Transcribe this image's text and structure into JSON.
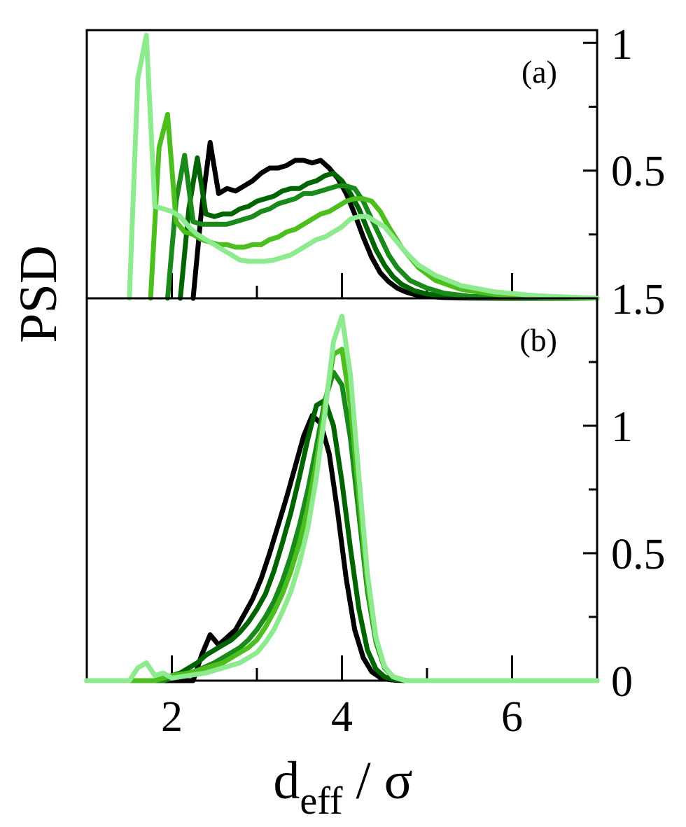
{
  "figure": {
    "ylabel": "PSD",
    "xlabel_main": "d",
    "xlabel_sub": "eff",
    "xlabel_rest": " / σ"
  },
  "chart_data": [
    {
      "type": "line",
      "panel": "(a)",
      "xlim": [
        1,
        7
      ],
      "ylim": [
        0,
        1.05
      ],
      "x_ticks": [
        2,
        4,
        6
      ],
      "y_tick_labels": [
        "1",
        "0.5"
      ],
      "colors": [
        "#000000",
        "#006400",
        "#1a8a1a",
        "#4cbf1f",
        "#8eea8e"
      ],
      "series": [
        {
          "x": [
            2.25,
            2.35,
            2.45,
            2.55,
            2.65,
            2.75,
            2.85,
            2.95,
            3.05,
            3.15,
            3.25,
            3.35,
            3.45,
            3.55,
            3.65,
            3.75,
            3.85,
            3.95,
            4.05,
            4.15,
            4.25,
            4.35,
            4.45,
            4.55,
            4.65,
            4.75,
            4.85,
            5.0,
            5.2,
            5.5,
            6.0,
            7.0
          ],
          "values": [
            0.0,
            0.35,
            0.61,
            0.41,
            0.43,
            0.42,
            0.44,
            0.46,
            0.49,
            0.51,
            0.51,
            0.52,
            0.54,
            0.54,
            0.53,
            0.54,
            0.51,
            0.47,
            0.41,
            0.33,
            0.24,
            0.16,
            0.1,
            0.065,
            0.04,
            0.025,
            0.015,
            0.007,
            0.003,
            0.001,
            0.0,
            0.0
          ]
        },
        {
          "x": [
            2.1,
            2.2,
            2.3,
            2.4,
            2.5,
            2.6,
            2.7,
            2.8,
            2.9,
            3.0,
            3.1,
            3.2,
            3.3,
            3.4,
            3.5,
            3.6,
            3.7,
            3.8,
            3.9,
            4.0,
            4.1,
            4.2,
            4.3,
            4.4,
            4.5,
            4.6,
            4.7,
            4.85,
            5.0,
            5.2,
            5.5,
            6.0,
            7.0
          ],
          "values": [
            0.0,
            0.35,
            0.55,
            0.33,
            0.32,
            0.33,
            0.33,
            0.35,
            0.36,
            0.38,
            0.39,
            0.4,
            0.42,
            0.43,
            0.43,
            0.45,
            0.46,
            0.48,
            0.49,
            0.46,
            0.41,
            0.35,
            0.27,
            0.19,
            0.13,
            0.085,
            0.055,
            0.03,
            0.017,
            0.008,
            0.003,
            0.001,
            0.0
          ]
        },
        {
          "x": [
            1.95,
            2.05,
            2.15,
            2.25,
            2.35,
            2.45,
            2.55,
            2.65,
            2.75,
            2.85,
            2.95,
            3.05,
            3.15,
            3.25,
            3.35,
            3.45,
            3.55,
            3.65,
            3.75,
            3.85,
            3.95,
            4.05,
            4.15,
            4.25,
            4.35,
            4.45,
            4.55,
            4.65,
            4.8,
            5.0,
            5.2,
            5.5,
            6.0,
            7.0
          ],
          "values": [
            0.0,
            0.38,
            0.56,
            0.3,
            0.29,
            0.29,
            0.29,
            0.29,
            0.3,
            0.31,
            0.32,
            0.34,
            0.35,
            0.37,
            0.38,
            0.39,
            0.41,
            0.41,
            0.42,
            0.43,
            0.44,
            0.44,
            0.43,
            0.38,
            0.31,
            0.24,
            0.17,
            0.12,
            0.07,
            0.04,
            0.02,
            0.008,
            0.002,
            0.0
          ]
        },
        {
          "x": [
            1.75,
            1.85,
            1.95,
            2.05,
            2.15,
            2.25,
            2.35,
            2.45,
            2.55,
            2.65,
            2.75,
            2.85,
            2.95,
            3.05,
            3.15,
            3.25,
            3.35,
            3.45,
            3.55,
            3.65,
            3.75,
            3.85,
            3.95,
            4.05,
            4.15,
            4.25,
            4.35,
            4.45,
            4.55,
            4.7,
            4.9,
            5.1,
            5.4,
            5.8,
            6.3,
            7.0
          ],
          "values": [
            0.0,
            0.59,
            0.72,
            0.3,
            0.26,
            0.25,
            0.23,
            0.22,
            0.21,
            0.21,
            0.2,
            0.2,
            0.21,
            0.21,
            0.23,
            0.24,
            0.26,
            0.27,
            0.29,
            0.31,
            0.33,
            0.34,
            0.36,
            0.38,
            0.39,
            0.39,
            0.38,
            0.34,
            0.28,
            0.2,
            0.12,
            0.07,
            0.035,
            0.015,
            0.005,
            0.0
          ]
        },
        {
          "x": [
            1.5,
            1.6,
            1.7,
            1.8,
            1.9,
            2.0,
            2.1,
            2.2,
            2.3,
            2.4,
            2.5,
            2.6,
            2.7,
            2.8,
            2.9,
            3.0,
            3.1,
            3.2,
            3.3,
            3.4,
            3.5,
            3.6,
            3.7,
            3.8,
            3.9,
            4.0,
            4.1,
            4.2,
            4.3,
            4.4,
            4.5,
            4.6,
            4.75,
            4.9,
            5.1,
            5.4,
            5.8,
            6.3,
            7.0
          ],
          "values": [
            0.0,
            0.86,
            1.03,
            0.36,
            0.35,
            0.34,
            0.32,
            0.28,
            0.25,
            0.23,
            0.21,
            0.19,
            0.17,
            0.15,
            0.145,
            0.145,
            0.145,
            0.15,
            0.16,
            0.17,
            0.19,
            0.21,
            0.23,
            0.24,
            0.26,
            0.28,
            0.31,
            0.32,
            0.32,
            0.3,
            0.28,
            0.24,
            0.18,
            0.13,
            0.09,
            0.05,
            0.025,
            0.01,
            0.0
          ]
        }
      ]
    },
    {
      "type": "line",
      "panel": "(b)",
      "xlim": [
        1,
        7
      ],
      "ylim": [
        0,
        1.5
      ],
      "x_ticks": [
        2,
        4,
        6
      ],
      "y_tick_labels": [
        "1.5",
        "1",
        "0.5",
        "0"
      ],
      "colors": [
        "#000000",
        "#006400",
        "#1a8a1a",
        "#4cbf1f",
        "#8eea8e"
      ],
      "series": [
        {
          "x": [
            1.0,
            2.25,
            2.35,
            2.45,
            2.55,
            2.65,
            2.75,
            2.85,
            2.95,
            3.05,
            3.15,
            3.25,
            3.35,
            3.45,
            3.55,
            3.65,
            3.75,
            3.85,
            3.95,
            4.05,
            4.15,
            4.25,
            4.35,
            4.45,
            4.55,
            4.65,
            4.8,
            7.0
          ],
          "values": [
            0.0,
            0.0,
            0.1,
            0.18,
            0.14,
            0.17,
            0.2,
            0.26,
            0.32,
            0.4,
            0.5,
            0.61,
            0.72,
            0.84,
            0.96,
            1.04,
            1.01,
            0.89,
            0.66,
            0.4,
            0.2,
            0.09,
            0.035,
            0.012,
            0.004,
            0.001,
            0.0,
            0.0
          ]
        },
        {
          "x": [
            1.0,
            1.9,
            2.0,
            2.1,
            2.2,
            2.3,
            2.4,
            2.5,
            2.6,
            2.7,
            2.8,
            2.9,
            3.0,
            3.1,
            3.2,
            3.3,
            3.4,
            3.5,
            3.6,
            3.7,
            3.8,
            3.9,
            4.0,
            4.1,
            4.2,
            4.3,
            4.4,
            4.5,
            4.6,
            4.75,
            7.0
          ],
          "values": [
            0.0,
            0.0,
            0.02,
            0.03,
            0.05,
            0.07,
            0.1,
            0.12,
            0.14,
            0.16,
            0.19,
            0.23,
            0.28,
            0.34,
            0.43,
            0.54,
            0.66,
            0.8,
            0.95,
            1.08,
            1.1,
            1.0,
            0.78,
            0.52,
            0.28,
            0.12,
            0.045,
            0.015,
            0.005,
            0.0,
            0.0
          ]
        },
        {
          "x": [
            1.0,
            1.9,
            2.1,
            2.3,
            2.5,
            2.6,
            2.7,
            2.8,
            2.9,
            3.0,
            3.1,
            3.2,
            3.3,
            3.4,
            3.5,
            3.6,
            3.7,
            3.8,
            3.9,
            4.0,
            4.1,
            4.2,
            4.3,
            4.4,
            4.5,
            4.6,
            4.75,
            7.0
          ],
          "values": [
            0.0,
            0.0,
            0.02,
            0.04,
            0.07,
            0.09,
            0.11,
            0.13,
            0.16,
            0.2,
            0.25,
            0.31,
            0.39,
            0.49,
            0.61,
            0.75,
            0.92,
            1.1,
            1.21,
            1.16,
            0.95,
            0.65,
            0.35,
            0.15,
            0.05,
            0.015,
            0.0,
            0.0
          ]
        },
        {
          "x": [
            1.0,
            1.8,
            2.0,
            2.2,
            2.4,
            2.6,
            2.7,
            2.8,
            2.9,
            3.0,
            3.1,
            3.2,
            3.3,
            3.4,
            3.5,
            3.6,
            3.7,
            3.8,
            3.9,
            4.0,
            4.1,
            4.2,
            4.3,
            4.4,
            4.5,
            4.6,
            4.75,
            7.0
          ],
          "values": [
            0.0,
            0.0,
            0.02,
            0.03,
            0.05,
            0.07,
            0.09,
            0.11,
            0.13,
            0.16,
            0.21,
            0.27,
            0.34,
            0.43,
            0.54,
            0.68,
            0.86,
            1.08,
            1.28,
            1.3,
            1.08,
            0.72,
            0.38,
            0.16,
            0.055,
            0.015,
            0.0,
            0.0
          ]
        },
        {
          "x": [
            1.0,
            1.5,
            1.6,
            1.7,
            1.8,
            1.9,
            2.0,
            2.2,
            2.4,
            2.6,
            2.8,
            2.9,
            3.0,
            3.1,
            3.2,
            3.3,
            3.4,
            3.5,
            3.6,
            3.7,
            3.8,
            3.9,
            4.0,
            4.1,
            4.2,
            4.3,
            4.4,
            4.5,
            4.6,
            4.75,
            7.0
          ],
          "values": [
            0.0,
            0.0,
            0.05,
            0.07,
            0.02,
            0.03,
            0.01,
            0.02,
            0.03,
            0.05,
            0.07,
            0.09,
            0.11,
            0.15,
            0.2,
            0.27,
            0.35,
            0.46,
            0.6,
            0.8,
            1.05,
            1.33,
            1.43,
            1.2,
            0.8,
            0.42,
            0.17,
            0.055,
            0.015,
            0.0,
            0.0
          ]
        }
      ]
    }
  ]
}
